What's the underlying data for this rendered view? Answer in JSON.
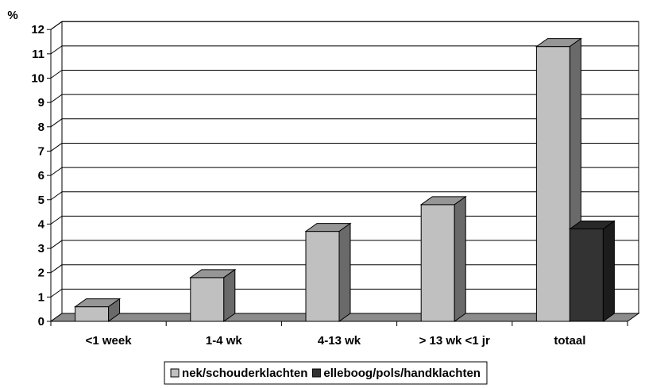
{
  "chart_data": {
    "type": "bar",
    "style": "3d-clustered-column",
    "ylabel": "%",
    "ylim": [
      0,
      12
    ],
    "yticks": [
      0,
      1,
      2,
      3,
      4,
      5,
      6,
      7,
      8,
      9,
      10,
      11,
      12
    ],
    "grid": true,
    "legend_position": "bottom",
    "categories": [
      "<1 week",
      "1-4 wk",
      "4-13 wk",
      "> 13 wk <1 jr",
      "totaal"
    ],
    "series": [
      {
        "name": "nek/schouderklachten",
        "values": [
          0.6,
          1.8,
          3.7,
          4.8,
          11.3
        ],
        "color": "#c0c0c0"
      },
      {
        "name": "elleboog/pols/handklachten",
        "values": [
          0,
          0,
          0,
          0,
          3.8
        ],
        "color": "#333333"
      }
    ]
  }
}
